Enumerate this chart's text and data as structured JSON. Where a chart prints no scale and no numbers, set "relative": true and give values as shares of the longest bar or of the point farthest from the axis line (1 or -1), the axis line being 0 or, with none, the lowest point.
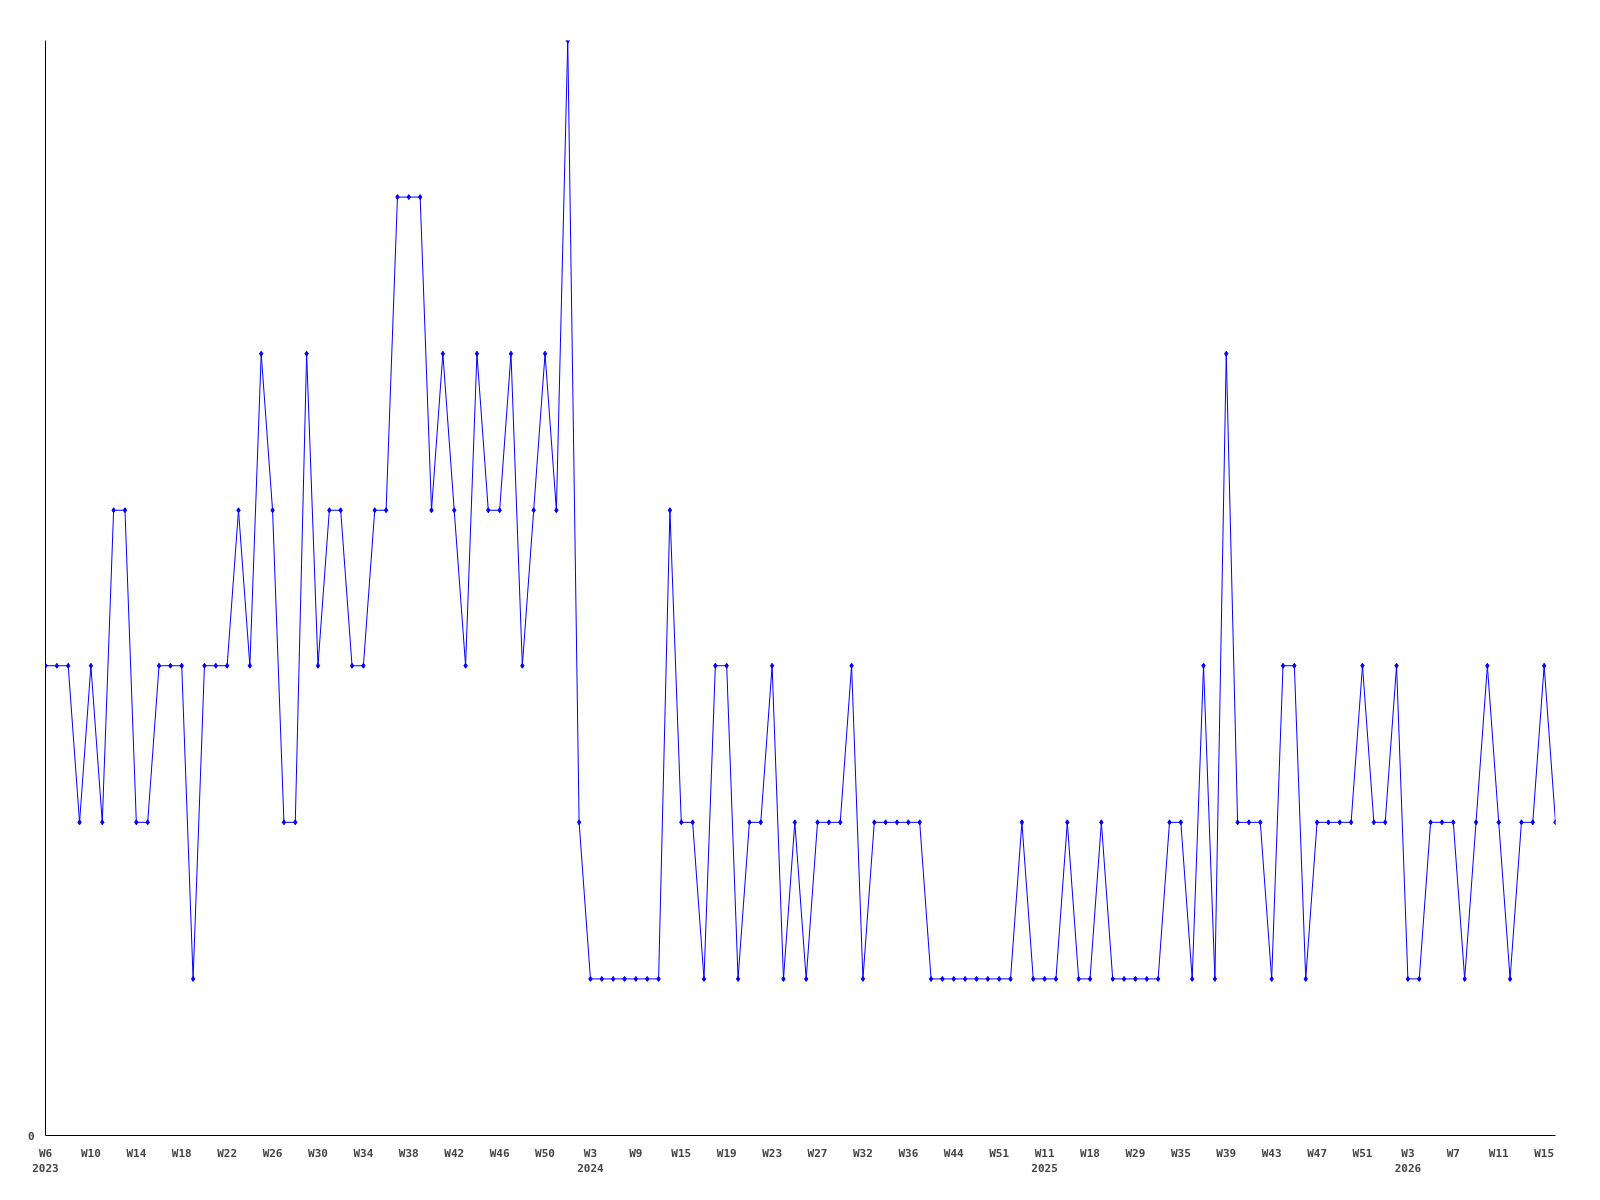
{
  "chart_data": {
    "type": "line",
    "relative": true,
    "marker": "diamond",
    "line_style": "solid",
    "annotations": [
      "0"
    ],
    "categories": [
      "W6\n2023",
      null,
      null,
      null,
      "W10",
      null,
      null,
      null,
      "W14",
      null,
      null,
      null,
      "W18",
      null,
      null,
      null,
      "W22",
      null,
      null,
      null,
      "W26",
      null,
      null,
      null,
      "W30",
      null,
      null,
      null,
      "W34",
      null,
      null,
      null,
      "W38",
      null,
      null,
      null,
      "W42",
      null,
      null,
      null,
      "W46",
      null,
      null,
      null,
      "W50",
      null,
      null,
      null,
      "W3\n2024",
      null,
      null,
      null,
      "W9",
      null,
      null,
      null,
      "W15",
      null,
      null,
      null,
      "W19",
      null,
      null,
      null,
      "W23",
      null,
      null,
      null,
      "W27",
      null,
      null,
      null,
      "W32",
      null,
      null,
      null,
      "W36",
      null,
      null,
      null,
      "W44",
      null,
      null,
      null,
      "W51",
      null,
      null,
      null,
      "W11\n2025",
      null,
      null,
      null,
      "W18",
      null,
      null,
      null,
      "W29",
      null,
      null,
      null,
      "W35",
      null,
      null,
      null,
      "W39",
      null,
      null,
      null,
      "W43",
      null,
      null,
      null,
      "W47",
      null,
      null,
      null,
      "W51",
      null,
      null,
      null,
      "W3\n2026",
      null,
      null,
      null,
      "W7",
      null,
      null,
      null,
      "W11",
      null,
      null,
      null,
      "W15",
      null
    ],
    "series": [
      {
        "color": "#0000ff",
        "values": [
          0.429,
          0.429,
          0.429,
          0.286,
          0.429,
          0.286,
          0.571,
          0.571,
          0.286,
          0.286,
          0.429,
          0.429,
          0.429,
          0.143,
          0.429,
          0.429,
          0.429,
          0.571,
          0.429,
          0.714,
          0.571,
          0.286,
          0.286,
          0.714,
          0.429,
          0.571,
          0.571,
          0.429,
          0.429,
          0.571,
          0.571,
          0.857,
          0.857,
          0.857,
          0.571,
          0.714,
          0.571,
          0.429,
          0.714,
          0.571,
          0.571,
          0.714,
          0.429,
          0.571,
          0.714,
          0.571,
          1,
          0.286,
          0.143,
          0.143,
          0.143,
          0.143,
          0.143,
          0.143,
          0.143,
          0.571,
          0.286,
          0.286,
          0.143,
          0.429,
          0.429,
          0.143,
          0.286,
          0.286,
          0.429,
          0.143,
          0.286,
          0.143,
          0.286,
          0.286,
          0.286,
          0.429,
          0.143,
          0.286,
          0.286,
          0.286,
          0.286,
          0.286,
          0.143,
          0.143,
          0.143,
          0.143,
          0.143,
          0.143,
          0.143,
          0.143,
          0.286,
          0.143,
          0.143,
          0.143,
          0.286,
          0.143,
          0.143,
          0.286,
          0.143,
          0.143,
          0.143,
          0.143,
          0.143,
          0.286,
          0.286,
          0.143,
          0.429,
          0.143,
          0.714,
          0.286,
          0.286,
          0.286,
          0.143,
          0.429,
          0.429,
          0.143,
          0.286,
          0.286,
          0.286,
          0.286,
          0.429,
          0.286,
          0.286,
          0.429,
          0.143,
          0.143,
          0.286,
          0.286,
          0.286,
          0.143,
          0.286,
          0.429,
          0.286,
          0.143,
          0.286,
          0.286,
          0.429,
          0.286
        ]
      }
    ]
  }
}
